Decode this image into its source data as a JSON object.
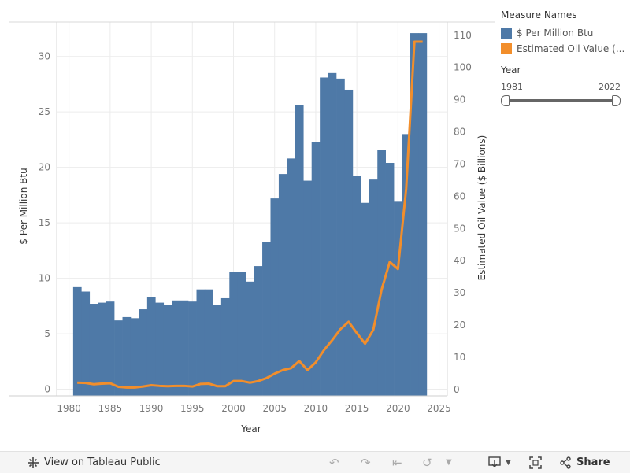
{
  "chart_data": {
    "type": "bar+line",
    "xlabel": "Year",
    "ylabel_left": "$ Per Million Btu",
    "ylabel_right": "Estimated Oil Value ($ Billions)",
    "x_ticks": [
      1980,
      1985,
      1990,
      1995,
      2000,
      2005,
      2010,
      2015,
      2020,
      2025
    ],
    "y_left_ticks": [
      0,
      5,
      10,
      15,
      20,
      25,
      30
    ],
    "y_right_ticks": [
      0,
      10,
      20,
      30,
      40,
      50,
      60,
      70,
      80,
      90,
      100,
      110
    ],
    "x_range": [
      1978.5,
      2026
    ],
    "y_left_range": [
      -0.6,
      33.1
    ],
    "y_right_range": [
      -2.0,
      114.1
    ],
    "years": [
      1981,
      1982,
      1983,
      1984,
      1985,
      1986,
      1987,
      1988,
      1989,
      1990,
      1991,
      1992,
      1993,
      1994,
      1995,
      1996,
      1997,
      1998,
      1999,
      2000,
      2001,
      2002,
      2003,
      2004,
      2005,
      2006,
      2007,
      2008,
      2009,
      2010,
      2011,
      2012,
      2013,
      2014,
      2015,
      2016,
      2017,
      2018,
      2019,
      2020,
      2021,
      2022,
      2023
    ],
    "series": [
      {
        "name": "$ Per Million Btu",
        "kind": "bar",
        "axis": "left",
        "color": "#4e79a7",
        "values": [
          9.2,
          8.8,
          7.7,
          7.8,
          7.9,
          6.2,
          6.5,
          6.4,
          7.2,
          8.3,
          7.8,
          7.6,
          8.0,
          8.0,
          7.9,
          9.0,
          9.0,
          7.6,
          8.2,
          10.6,
          10.6,
          9.7,
          11.1,
          13.3,
          17.2,
          19.4,
          20.8,
          25.6,
          18.8,
          22.3,
          28.1,
          28.5,
          28.0,
          27.0,
          19.2,
          16.8,
          18.9,
          21.6,
          20.4,
          16.9,
          23.0,
          32.1,
          32.1
        ]
      },
      {
        "name": "Estimated Oil Value (...",
        "kind": "line",
        "axis": "right",
        "color": "#f28e2b",
        "values": [
          2.1,
          2.0,
          1.6,
          1.8,
          1.9,
          0.8,
          0.6,
          0.6,
          0.9,
          1.3,
          1.1,
          1.0,
          1.1,
          1.1,
          0.9,
          1.7,
          1.8,
          1.0,
          1.0,
          2.6,
          2.6,
          2.1,
          2.6,
          3.5,
          4.9,
          6.0,
          6.6,
          8.8,
          6.0,
          8.4,
          12.2,
          15.3,
          18.7,
          21.0,
          17.5,
          14.2,
          18.5,
          30.9,
          39.6,
          37.4,
          62.4,
          108.0,
          108.0
        ]
      }
    ]
  },
  "legend": {
    "title": "Measure Names",
    "items": [
      {
        "label": "$ Per Million Btu",
        "color": "#4e79a7"
      },
      {
        "label": "Estimated Oil Value (...",
        "color": "#f28e2b"
      }
    ]
  },
  "filter": {
    "title": "Year",
    "min": "1981",
    "max": "2022"
  },
  "toolbar": {
    "view_label": "View on Tableau Public",
    "share_label": "Share"
  }
}
